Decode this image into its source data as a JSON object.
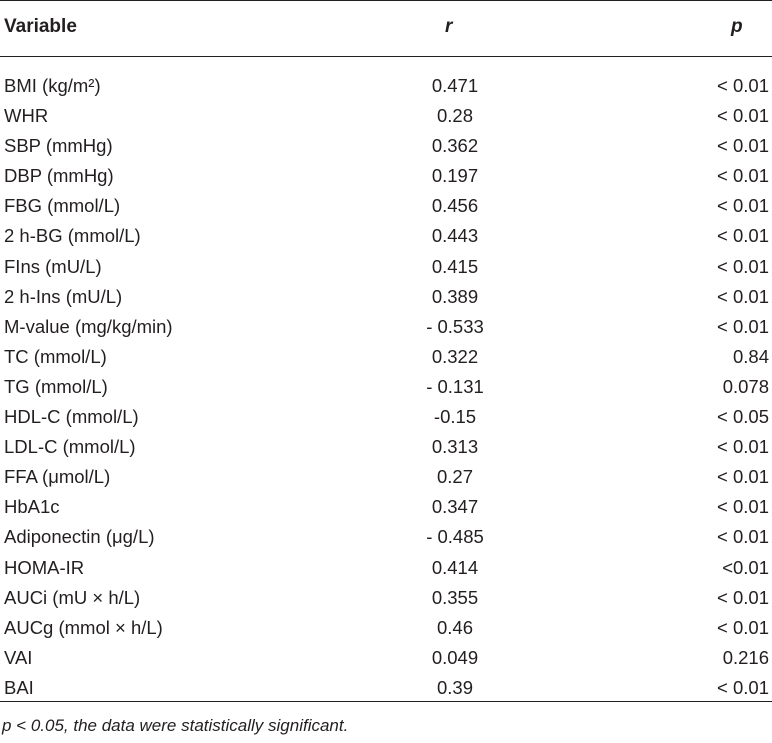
{
  "table": {
    "headers": {
      "variable": "Variable",
      "r": "r",
      "p": "p"
    },
    "rows": [
      {
        "variable": "BMI (kg/m²)",
        "r": "0.471",
        "p": "< 0.01"
      },
      {
        "variable": "WHR",
        "r": "0.28",
        "p": "< 0.01"
      },
      {
        "variable": "SBP (mmHg)",
        "r": "0.362",
        "p": "< 0.01"
      },
      {
        "variable": "DBP (mmHg)",
        "r": "0.197",
        "p": "< 0.01"
      },
      {
        "variable": "FBG (mmol/L)",
        "r": "0.456",
        "p": "< 0.01"
      },
      {
        "variable": "2 h-BG (mmol/L)",
        "r": "0.443",
        "p": "< 0.01"
      },
      {
        "variable": "FIns (mU/L)",
        "r": "0.415",
        "p": "< 0.01"
      },
      {
        "variable": "2 h-Ins (mU/L)",
        "r": "0.389",
        "p": "< 0.01"
      },
      {
        "variable": "M-value (mg/kg/min)",
        "r": "- 0.533",
        "p": "< 0.01"
      },
      {
        "variable": "TC (mmol/L)",
        "r": "0.322",
        "p": "0.84"
      },
      {
        "variable": "TG (mmol/L)",
        "r": "- 0.131",
        "p": "0.078"
      },
      {
        "variable": "HDL-C (mmol/L)",
        "r": "-0.15",
        "p": "< 0.05"
      },
      {
        "variable": "LDL-C (mmol/L)",
        "r": "0.313",
        "p": "< 0.01"
      },
      {
        "variable": "FFA (μmol/L)",
        "r": "0.27",
        "p": "< 0.01"
      },
      {
        "variable": "HbA1c",
        "r": "0.347",
        "p": "< 0.01"
      },
      {
        "variable": "Adiponectin (μg/L)",
        "r": "- 0.485",
        "p": "< 0.01"
      },
      {
        "variable": "HOMA-IR",
        "r": "0.414",
        "p": "<0.01"
      },
      {
        "variable": "AUCi (mU × h/L)",
        "r": "0.355",
        "p": "< 0.01"
      },
      {
        "variable": "AUCg (mmol × h/L)",
        "r": "0.46",
        "p": "< 0.01"
      },
      {
        "variable": "VAI",
        "r": "0.049",
        "p": "0.216"
      },
      {
        "variable": "BAI",
        "r": "0.39",
        "p": "< 0.01"
      }
    ]
  },
  "footnote": "p < 0.05, the data were statistically significant."
}
